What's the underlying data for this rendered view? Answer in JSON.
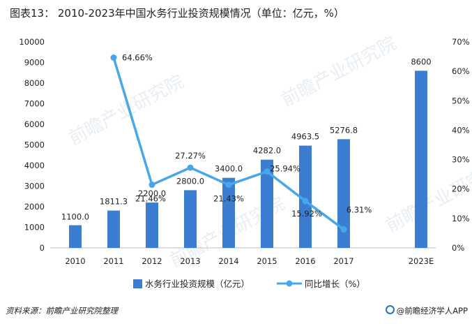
{
  "title": "图表13： 2010-2023年中国水务行业投资规模情况（单位：亿元，%）",
  "source": "资料来源：前瞻产业研究院整理",
  "brand": "@前瞻经济学人APP",
  "watermark": "前瞻产业研究院",
  "chart_data": {
    "type": "bar",
    "categories": [
      "2010",
      "2011",
      "2012",
      "2013",
      "2014",
      "2015",
      "2016",
      "2017",
      "2023E"
    ],
    "series": [
      {
        "name": "水务行业投资规模（亿元）",
        "type": "bar",
        "axis": "left",
        "color": "#3a7dd1",
        "values": [
          1100.0,
          1811.3,
          2200.0,
          2800.0,
          3400.0,
          4282.0,
          4963.5,
          5276.8,
          8600
        ],
        "labels": [
          "1100.0",
          "1811.3",
          "2200.0",
          "2800.0",
          "3400.0",
          "4282.0",
          "4963.5",
          "5276.8",
          "8600"
        ]
      },
      {
        "name": "同比增长（%）",
        "type": "line",
        "axis": "right",
        "color": "#47a7ea",
        "values": [
          null,
          64.66,
          21.46,
          27.27,
          21.43,
          25.94,
          15.92,
          6.31,
          null
        ],
        "labels": [
          "",
          "64.66%",
          "21.46%",
          "27.27%",
          "21.43%",
          "25.94%",
          "15.92%",
          "6.31%",
          ""
        ]
      }
    ],
    "y_left": {
      "min": 0,
      "max": 10000,
      "ticks": [
        "0",
        "1000",
        "2000",
        "3000",
        "4000",
        "5000",
        "6000",
        "7000",
        "8000",
        "9000",
        "10000"
      ]
    },
    "y_right": {
      "min": 0,
      "max": 70,
      "ticks": [
        "0%",
        "10%",
        "20%",
        "30%",
        "40%",
        "50%",
        "60%",
        "70%"
      ]
    },
    "grid": false,
    "legend": "bottom"
  }
}
